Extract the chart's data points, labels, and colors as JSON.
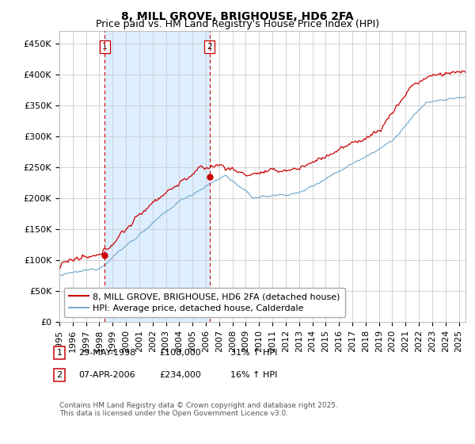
{
  "title": "8, MILL GROVE, BRIGHOUSE, HD6 2FA",
  "subtitle": "Price paid vs. HM Land Registry's House Price Index (HPI)",
  "ylabel_ticks": [
    "£0",
    "£50K",
    "£100K",
    "£150K",
    "£200K",
    "£250K",
    "£300K",
    "£350K",
    "£400K",
    "£450K"
  ],
  "ytick_values": [
    0,
    50000,
    100000,
    150000,
    200000,
    250000,
    300000,
    350000,
    400000,
    450000
  ],
  "ylim": [
    0,
    470000
  ],
  "xlim_start": 1995.0,
  "xlim_end": 2025.5,
  "sale1_date": 1998.4,
  "sale1_price": 108000,
  "sale1_label": "1",
  "sale2_date": 2006.27,
  "sale2_price": 234000,
  "sale2_label": "2",
  "legend_red": "8, MILL GROVE, BRIGHOUSE, HD6 2FA (detached house)",
  "legend_blue": "HPI: Average price, detached house, Calderdale",
  "footer": "Contains HM Land Registry data © Crown copyright and database right 2025.\nThis data is licensed under the Open Government Licence v3.0.",
  "red_color": "#cc0000",
  "blue_color": "#7aadcf",
  "shade_color": "#ddeeff",
  "sale_marker_color": "#cc0000",
  "sale_line_color": "#cc0000",
  "background_color": "#ffffff",
  "grid_color": "#cccccc",
  "title_fontsize": 10,
  "subtitle_fontsize": 9,
  "tick_fontsize": 8,
  "legend_fontsize": 8,
  "footer_fontsize": 6.5,
  "xtick_years": [
    "1995",
    "1996",
    "1997",
    "1998",
    "1999",
    "2000",
    "2001",
    "2002",
    "2003",
    "2004",
    "2005",
    "2006",
    "2007",
    "2008",
    "2009",
    "2010",
    "2011",
    "2012",
    "2013",
    "2014",
    "2015",
    "2016",
    "2017",
    "2018",
    "2019",
    "2020",
    "2021",
    "2022",
    "2023",
    "2024",
    "2025"
  ]
}
